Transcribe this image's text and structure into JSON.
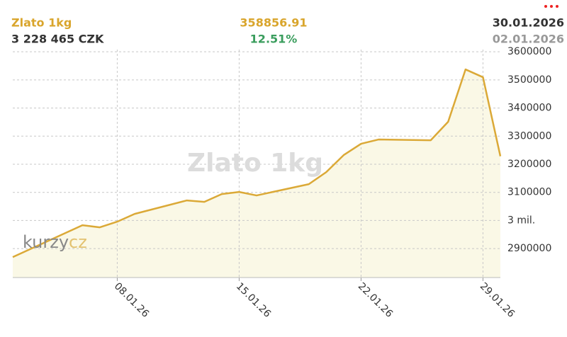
{
  "header": {
    "left_title": "Zlato 1kg",
    "left_value": "3 228 465 CZK",
    "center_value": "358856.91",
    "center_change": "12.51%",
    "right_date": "30.01.2026",
    "right_start_date": "02.01.2026"
  },
  "brand": {
    "name": "kurzy",
    "tld": "cz"
  },
  "chart_data": {
    "type": "line",
    "title": "Zlato 1kg",
    "x": [
      "02.01.26",
      "06.01.26",
      "07.01.26",
      "08.01.26",
      "09.01.26",
      "12.01.26",
      "13.01.26",
      "14.01.26",
      "15.01.26",
      "16.01.26",
      "19.01.26",
      "20.01.26",
      "21.01.26",
      "22.01.26",
      "23.01.26",
      "26.01.26",
      "27.01.26",
      "28.01.26",
      "29.01.26",
      "30.01.26"
    ],
    "series": [
      {
        "name": "Zlato 1kg",
        "color": "#dba937",
        "values": [
          2869608,
          2983000,
          2975600,
          2995700,
          3023400,
          3071300,
          3066200,
          3094000,
          3101500,
          3089000,
          3129200,
          3172000,
          3232500,
          3272800,
          3288000,
          3285400,
          3351000,
          3537300,
          3509600,
          3228465
        ]
      }
    ],
    "xlim": [
      "02.01.26",
      "30.01.26"
    ],
    "xticks": [
      "08.01.26",
      "15.01.26",
      "22.01.26",
      "29.01.26"
    ],
    "ylim": [
      2797000,
      3608000
    ],
    "yticks": [
      2900000,
      {
        "value": 3000000,
        "label": "3 mil."
      },
      3100000,
      3200000,
      3300000,
      3400000,
      3500000,
      3600000
    ],
    "grid": true,
    "fill": "#faf8e6"
  }
}
